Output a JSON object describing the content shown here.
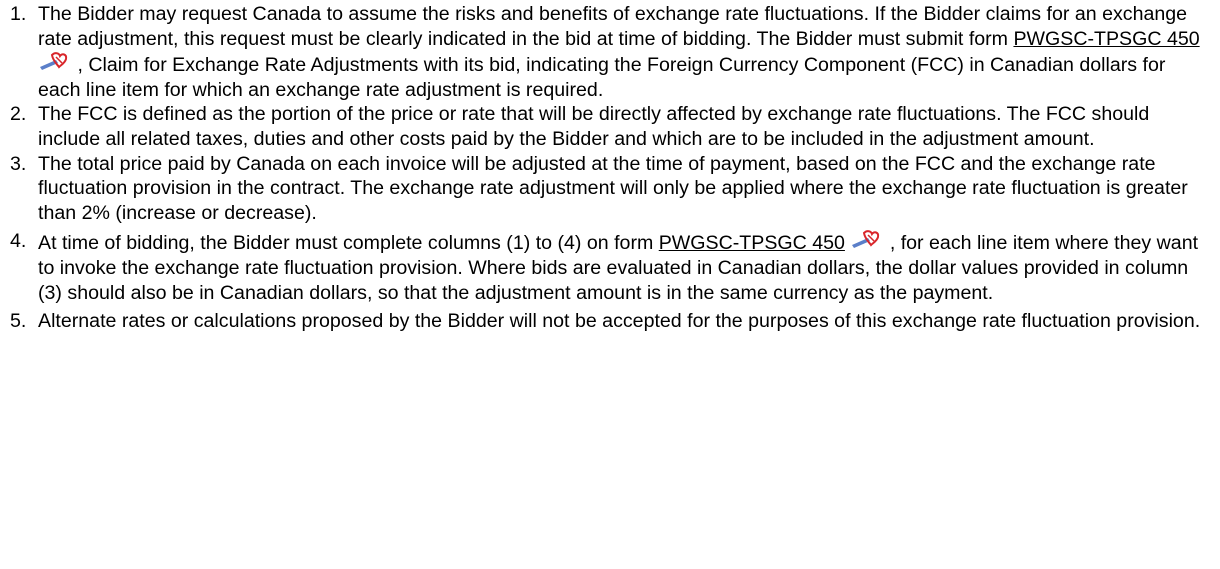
{
  "items": [
    {
      "number": "1.",
      "text": "The Bidder may request Canada to assume the risks and benefits of exchange rate fluctuations. If the Bidder claims for an exchange rate adjustment, this request must be clearly indicated in the bid at time of bidding. The Bidder must submit form ",
      "link": "PWGSC-TPSGC 450",
      "text_after": ", Claim for Exchange Rate Adjustments with its bid, indicating the Foreign Currency Component (FCC) in Canadian dollars for each line item for which an exchange rate adjustment is required."
    },
    {
      "number": "2.",
      "text": "The FCC is defined as the portion of the price or rate that will be directly affected by exchange rate fluctuations. The FCC should include all related taxes, duties and other costs paid by the Bidder and which are to be included in the adjustment amount."
    },
    {
      "number": "3.",
      "text": "The total price paid by Canada on each invoice will be adjusted at the time of payment, based on the FCC and the exchange rate fluctuation provision in the contract. The exchange rate adjustment will only be applied where the exchange rate fluctuation is greater than 2% (increase or decrease)."
    },
    {
      "number": "4.",
      "text": "At time of bidding, the Bidder must complete columns (1) to (4) on form ",
      "link": "PWGSC-TPSGC 450",
      "text_after": ", for each line item where they want to invoke the exchange rate fluctuation provision. Where bids are evaluated in Canadian dollars, the dollar values provided in column (3) should also be in Canadian dollars, so that the adjustment amount is in the same currency as the payment."
    },
    {
      "number": "5.",
      "text": "Alternate rates or calculations proposed by the Bidder will not be accepted for the purposes of this exchange rate fluctuation provision."
    }
  ]
}
